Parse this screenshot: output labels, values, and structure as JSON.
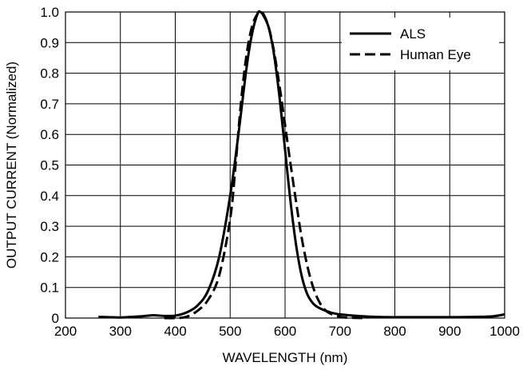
{
  "chart_data": {
    "type": "line",
    "xlabel": "WAVELENGTH (nm)",
    "ylabel": "OUTPUT CURRENT (Normalized)",
    "xlim": [
      200,
      1000
    ],
    "ylim": [
      0,
      1.0
    ],
    "x_ticks": [
      200,
      300,
      400,
      500,
      600,
      700,
      800,
      900,
      1000
    ],
    "y_ticks": [
      0,
      0.1,
      0.2,
      0.3,
      0.4,
      0.5,
      0.6,
      0.7,
      0.8,
      0.9,
      1.0
    ],
    "x_tick_labels": [
      "200",
      "300",
      "400",
      "500",
      "600",
      "700",
      "800",
      "900",
      "1000"
    ],
    "y_tick_labels": [
      "0",
      "0.1",
      "0.2",
      "0.3",
      "0.4",
      "0.5",
      "0.6",
      "0.7",
      "0.8",
      "0.9",
      "1.0"
    ],
    "grid": true,
    "legend_position": "top-right",
    "series": [
      {
        "name": "ALS",
        "style": "solid",
        "color": "#000000",
        "points": [
          [
            260,
            0.004
          ],
          [
            300,
            0.002
          ],
          [
            340,
            0.006
          ],
          [
            360,
            0.009
          ],
          [
            380,
            0.007
          ],
          [
            400,
            0.008
          ],
          [
            420,
            0.018
          ],
          [
            440,
            0.04
          ],
          [
            460,
            0.09
          ],
          [
            480,
            0.2
          ],
          [
            500,
            0.4
          ],
          [
            515,
            0.6
          ],
          [
            530,
            0.82
          ],
          [
            540,
            0.93
          ],
          [
            550,
            0.995
          ],
          [
            555,
            1.0
          ],
          [
            560,
            0.99
          ],
          [
            570,
            0.95
          ],
          [
            580,
            0.86
          ],
          [
            590,
            0.72
          ],
          [
            600,
            0.55
          ],
          [
            610,
            0.38
          ],
          [
            620,
            0.24
          ],
          [
            630,
            0.14
          ],
          [
            640,
            0.08
          ],
          [
            650,
            0.05
          ],
          [
            660,
            0.035
          ],
          [
            680,
            0.02
          ],
          [
            700,
            0.012
          ],
          [
            750,
            0.005
          ],
          [
            800,
            0.003
          ],
          [
            900,
            0.003
          ],
          [
            950,
            0.004
          ],
          [
            980,
            0.006
          ],
          [
            1000,
            0.012
          ]
        ]
      },
      {
        "name": "Human Eye",
        "style": "dashed",
        "color": "#000000",
        "points": [
          [
            380,
            0.0
          ],
          [
            400,
            0.0
          ],
          [
            420,
            0.004
          ],
          [
            440,
            0.023
          ],
          [
            460,
            0.06
          ],
          [
            480,
            0.139
          ],
          [
            500,
            0.323
          ],
          [
            510,
            0.503
          ],
          [
            520,
            0.71
          ],
          [
            530,
            0.862
          ],
          [
            540,
            0.954
          ],
          [
            550,
            0.995
          ],
          [
            555,
            1.0
          ],
          [
            560,
            0.995
          ],
          [
            570,
            0.952
          ],
          [
            580,
            0.87
          ],
          [
            590,
            0.757
          ],
          [
            600,
            0.631
          ],
          [
            610,
            0.503
          ],
          [
            620,
            0.381
          ],
          [
            630,
            0.265
          ],
          [
            640,
            0.175
          ],
          [
            650,
            0.107
          ],
          [
            660,
            0.061
          ],
          [
            670,
            0.032
          ],
          [
            680,
            0.017
          ],
          [
            700,
            0.004
          ],
          [
            720,
            0.001
          ],
          [
            750,
            0.0
          ]
        ]
      }
    ]
  }
}
